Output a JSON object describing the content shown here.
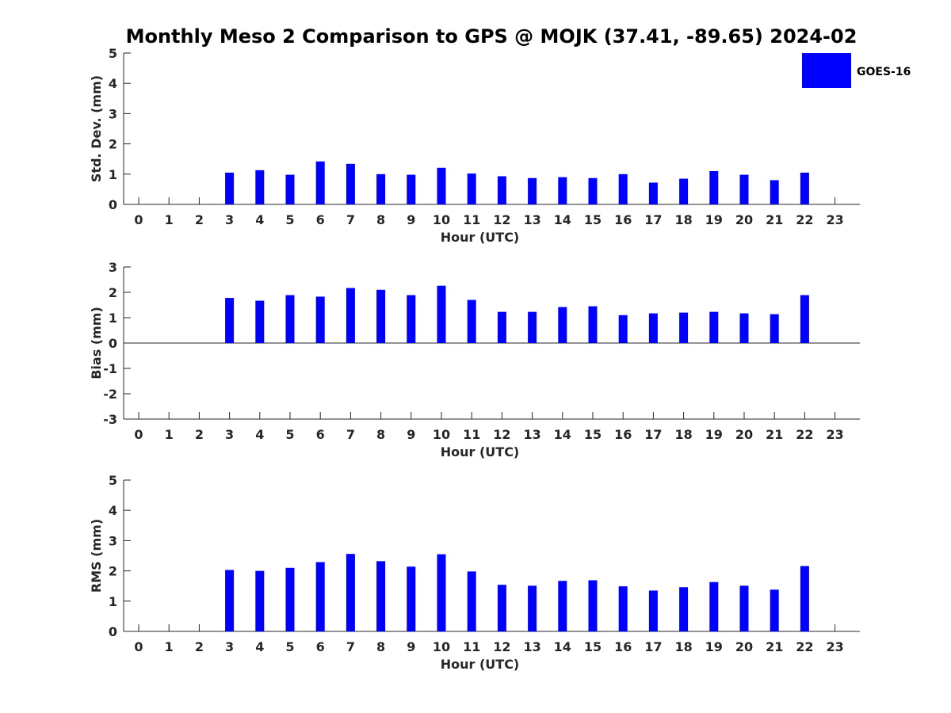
{
  "title": "Monthly Meso 2 Comparison to GPS @ MOJK (37.41, -89.65) 2024-02",
  "legend": {
    "label": "GOES-16",
    "color": "#0000ff",
    "placement": "top-right"
  },
  "chart_data": [
    {
      "type": "bar",
      "xlabel": "Hour (UTC)",
      "ylabel": "Std. Dev. (mm)",
      "categories": [
        "0",
        "1",
        "2",
        "3",
        "4",
        "5",
        "6",
        "7",
        "8",
        "9",
        "10",
        "11",
        "12",
        "13",
        "14",
        "15",
        "16",
        "17",
        "18",
        "19",
        "20",
        "21",
        "22",
        "23"
      ],
      "series": [
        {
          "name": "GOES-16",
          "color": "#0000ff",
          "values": [
            null,
            null,
            null,
            1.05,
            1.13,
            0.98,
            1.42,
            1.34,
            1.0,
            0.98,
            1.21,
            1.02,
            0.93,
            0.87,
            0.9,
            0.87,
            1.0,
            0.72,
            0.85,
            1.1,
            0.98,
            0.8,
            1.05,
            null
          ]
        }
      ],
      "ylim": [
        0,
        5
      ],
      "yticks": [
        0,
        1,
        2,
        3,
        4,
        5
      ],
      "zero_line": false,
      "grid": false
    },
    {
      "type": "bar",
      "xlabel": "Hour (UTC)",
      "ylabel": "Bias (mm)",
      "categories": [
        "0",
        "1",
        "2",
        "3",
        "4",
        "5",
        "6",
        "7",
        "8",
        "9",
        "10",
        "11",
        "12",
        "13",
        "14",
        "15",
        "16",
        "17",
        "18",
        "19",
        "20",
        "21",
        "22",
        "23"
      ],
      "series": [
        {
          "name": "GOES-16",
          "color": "#0000ff",
          "values": [
            null,
            null,
            null,
            1.78,
            1.67,
            1.89,
            1.83,
            2.17,
            2.1,
            1.89,
            2.26,
            1.7,
            1.23,
            1.23,
            1.42,
            1.45,
            1.1,
            1.17,
            1.2,
            1.23,
            1.17,
            1.14,
            1.89,
            null
          ]
        }
      ],
      "ylim": [
        -3,
        3
      ],
      "yticks": [
        -3,
        -2,
        -1,
        0,
        1,
        2,
        3
      ],
      "zero_line": true,
      "grid": false
    },
    {
      "type": "bar",
      "xlabel": "Hour (UTC)",
      "ylabel": "RMS (mm)",
      "categories": [
        "0",
        "1",
        "2",
        "3",
        "4",
        "5",
        "6",
        "7",
        "8",
        "9",
        "10",
        "11",
        "12",
        "13",
        "14",
        "15",
        "16",
        "17",
        "18",
        "19",
        "20",
        "21",
        "22",
        "23"
      ],
      "series": [
        {
          "name": "GOES-16",
          "color": "#0000ff",
          "values": [
            null,
            null,
            null,
            2.03,
            2.0,
            2.1,
            2.29,
            2.56,
            2.32,
            2.14,
            2.55,
            1.98,
            1.54,
            1.51,
            1.67,
            1.69,
            1.49,
            1.35,
            1.46,
            1.63,
            1.51,
            1.38,
            2.16,
            null
          ]
        }
      ],
      "ylim": [
        0,
        5
      ],
      "yticks": [
        0,
        1,
        2,
        3,
        4,
        5
      ],
      "zero_line": false,
      "grid": false
    }
  ]
}
